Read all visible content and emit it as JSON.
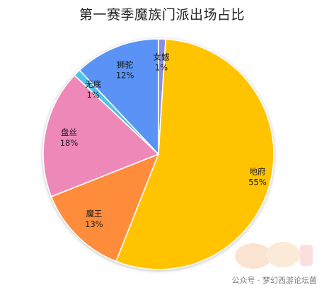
{
  "chart_data": {
    "type": "pie",
    "title": "第一赛季魔族门派出场占比",
    "slices": [
      {
        "label": "女魃",
        "value": 1,
        "display": "1%",
        "color": "#8c8fe0"
      },
      {
        "label": "地府",
        "value": 55,
        "display": "55%",
        "color": "#ffc300"
      },
      {
        "label": "魔王",
        "value": 13,
        "display": "13%",
        "color": "#ff8c3a"
      },
      {
        "label": "盘丝",
        "value": 18,
        "display": "18%",
        "color": "#ee88b8"
      },
      {
        "label": "无底",
        "value": 1,
        "display": "1%",
        "color": "#4ec2ea"
      },
      {
        "label": "狮驼",
        "value": 12,
        "display": "12%",
        "color": "#5a93f5"
      }
    ],
    "start": "12 o'clock",
    "direction": "clockwise",
    "legend": "none"
  },
  "watermark": {
    "text": "公众号 · 梦幻西游论坛菌"
  }
}
